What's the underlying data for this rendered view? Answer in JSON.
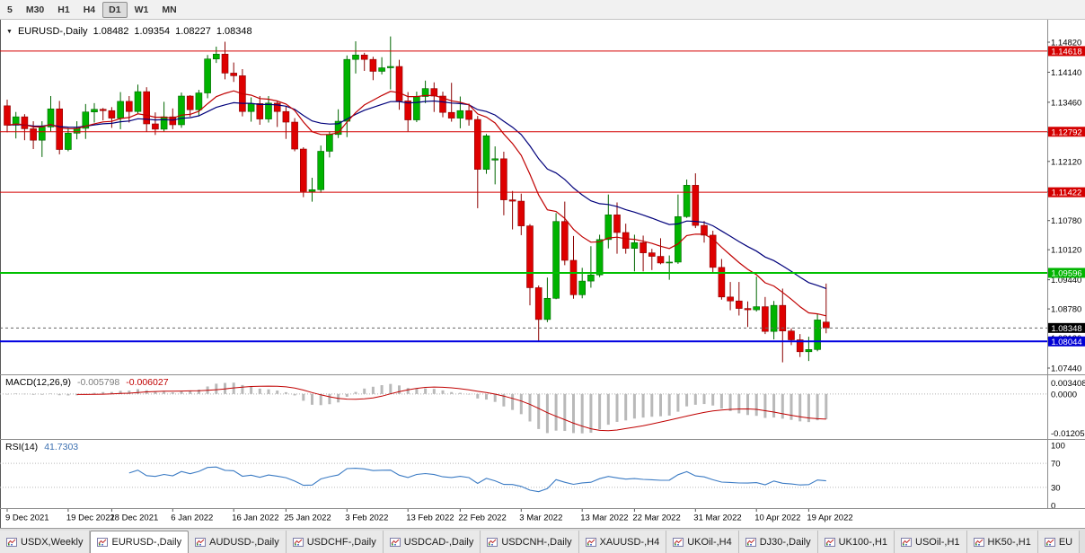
{
  "toolbar": {
    "timeframes": [
      {
        "label": "5",
        "active": false
      },
      {
        "label": "M30",
        "active": false
      },
      {
        "label": "H1",
        "active": false
      },
      {
        "label": "H4",
        "active": false
      },
      {
        "label": "D1",
        "active": true
      },
      {
        "label": "W1",
        "active": false
      },
      {
        "label": "MN",
        "active": false
      }
    ]
  },
  "chart": {
    "title": {
      "marker": "▼",
      "symbol": "EURUSD-,Daily",
      "open": "1.08482",
      "high": "1.09354",
      "low": "1.08227",
      "close": "1.08348"
    },
    "price_axis": {
      "ticks": [
        "1.14820",
        "1.14140",
        "1.13460",
        "1.12780",
        "1.12120",
        "1.11440",
        "1.10780",
        "1.10120",
        "1.09440",
        "1.08780",
        "1.08120",
        "1.07440"
      ],
      "badges": [
        {
          "label": "1.14618",
          "price": 1.14618,
          "color": "#d40000"
        },
        {
          "label": "1.12792",
          "price": 1.12792,
          "color": "#d40000"
        },
        {
          "label": "1.11422",
          "price": 1.11422,
          "color": "#d40000"
        },
        {
          "label": "1.09596",
          "price": 1.09596,
          "color": "#00b400"
        },
        {
          "label": "1.08348",
          "price": 1.08348,
          "color": "#000000"
        },
        {
          "label": "1.08044",
          "price": 1.08044,
          "color": "#0000d4"
        }
      ]
    },
    "hlines": [
      {
        "price": 1.14618,
        "color": "#d40000",
        "w": 1,
        "dash": false
      },
      {
        "price": 1.12792,
        "color": "#d40000",
        "w": 1,
        "dash": false
      },
      {
        "price": 1.11422,
        "color": "#d40000",
        "w": 1,
        "dash": false
      },
      {
        "price": 1.09596,
        "color": "#00c000",
        "w": 2,
        "dash": false
      },
      {
        "price": 1.08044,
        "color": "#0000e0",
        "w": 2,
        "dash": false
      },
      {
        "price": 1.08348,
        "color": "#666666",
        "w": 1,
        "dash": true
      }
    ],
    "ma": {
      "fast_period": 13,
      "slow_period": 26,
      "fast_color": "#c00000",
      "slow_color": "#00007b"
    },
    "candles": [
      [
        1.1338,
        1.1352,
        1.1278,
        1.1294
      ],
      [
        1.1294,
        1.1324,
        1.1264,
        1.1313
      ],
      [
        1.1313,
        1.1319,
        1.126,
        1.1286
      ],
      [
        1.1286,
        1.1303,
        1.124,
        1.126
      ],
      [
        1.126,
        1.1303,
        1.1222,
        1.129
      ],
      [
        1.129,
        1.136,
        1.128,
        1.1331
      ],
      [
        1.1331,
        1.1349,
        1.1228,
        1.1239
      ],
      [
        1.1239,
        1.1288,
        1.1235,
        1.1276
      ],
      [
        1.1276,
        1.1303,
        1.1262,
        1.1287
      ],
      [
        1.1287,
        1.1342,
        1.1263,
        1.1324
      ],
      [
        1.1324,
        1.1344,
        1.13,
        1.133
      ],
      [
        1.133,
        1.1333,
        1.1305,
        1.1327
      ],
      [
        1.1327,
        1.1335,
        1.1288,
        1.131
      ],
      [
        1.131,
        1.1369,
        1.1285,
        1.1348
      ],
      [
        1.1348,
        1.136,
        1.13,
        1.1325
      ],
      [
        1.1325,
        1.1386,
        1.1321,
        1.137
      ],
      [
        1.137,
        1.138,
        1.1279,
        1.1297
      ],
      [
        1.1297,
        1.1323,
        1.1272,
        1.1285
      ],
      [
        1.1285,
        1.1347,
        1.128,
        1.1313
      ],
      [
        1.1313,
        1.1332,
        1.1285,
        1.1295
      ],
      [
        1.1295,
        1.1368,
        1.1288,
        1.136
      ],
      [
        1.136,
        1.1362,
        1.1313,
        1.1329
      ],
      [
        1.1329,
        1.1374,
        1.1314,
        1.1367
      ],
      [
        1.1367,
        1.1453,
        1.1355,
        1.1444
      ],
      [
        1.1444,
        1.1472,
        1.1435,
        1.1455
      ],
      [
        1.1455,
        1.1483,
        1.1398,
        1.1412
      ],
      [
        1.1412,
        1.1436,
        1.1392,
        1.1406
      ],
      [
        1.1406,
        1.1421,
        1.1314,
        1.1325
      ],
      [
        1.1325,
        1.1357,
        1.1302,
        1.1343
      ],
      [
        1.1343,
        1.136,
        1.1295,
        1.1308
      ],
      [
        1.1308,
        1.136,
        1.13,
        1.1344
      ],
      [
        1.1344,
        1.1349,
        1.129,
        1.1325
      ],
      [
        1.1325,
        1.1338,
        1.1263,
        1.1301
      ],
      [
        1.1301,
        1.131,
        1.1235,
        1.124
      ],
      [
        1.124,
        1.1244,
        1.1131,
        1.1144
      ],
      [
        1.1144,
        1.1175,
        1.1121,
        1.1148
      ],
      [
        1.1148,
        1.1248,
        1.1141,
        1.1235
      ],
      [
        1.1235,
        1.128,
        1.1221,
        1.1273
      ],
      [
        1.1273,
        1.133,
        1.1265,
        1.1303
      ],
      [
        1.1303,
        1.1452,
        1.1267,
        1.1443
      ],
      [
        1.1443,
        1.1484,
        1.1411,
        1.1453
      ],
      [
        1.1453,
        1.1458,
        1.1417,
        1.1443
      ],
      [
        1.1443,
        1.1449,
        1.1396,
        1.1416
      ],
      [
        1.1416,
        1.1448,
        1.1409,
        1.1424
      ],
      [
        1.1424,
        1.1495,
        1.1375,
        1.1427
      ],
      [
        1.1427,
        1.1442,
        1.1329,
        1.1349
      ],
      [
        1.1349,
        1.1369,
        1.128,
        1.1306
      ],
      [
        1.1306,
        1.137,
        1.1301,
        1.1359
      ],
      [
        1.1359,
        1.1395,
        1.1344,
        1.1377
      ],
      [
        1.1377,
        1.1391,
        1.1324,
        1.136
      ],
      [
        1.136,
        1.137,
        1.1312,
        1.1323
      ],
      [
        1.1323,
        1.139,
        1.1302,
        1.131
      ],
      [
        1.131,
        1.1359,
        1.1287,
        1.1327
      ],
      [
        1.1327,
        1.1343,
        1.1293,
        1.1307
      ],
      [
        1.1307,
        1.1315,
        1.1106,
        1.1194
      ],
      [
        1.1194,
        1.1274,
        1.1184,
        1.127
      ],
      [
        1.1215,
        1.1246,
        1.116,
        1.1218
      ],
      [
        1.1218,
        1.1234,
        1.109,
        1.1125
      ],
      [
        1.1125,
        1.1145,
        1.1058,
        1.1122
      ],
      [
        1.1122,
        1.1139,
        1.1045,
        1.1066
      ],
      [
        1.1066,
        1.107,
        1.0886,
        1.0926
      ],
      [
        1.0926,
        1.0931,
        1.0806,
        1.0854
      ],
      [
        1.0854,
        1.0949,
        1.0848,
        1.0902
      ],
      [
        1.0902,
        1.1095,
        1.09,
        1.1076
      ],
      [
        1.1076,
        1.1121,
        1.0977,
        1.0988
      ],
      [
        1.0988,
        1.1043,
        1.0901,
        1.091
      ],
      [
        1.091,
        1.0971,
        1.0902,
        1.0941
      ],
      [
        1.0941,
        1.102,
        1.0926,
        1.0955
      ],
      [
        1.0955,
        1.1046,
        1.095,
        1.1035
      ],
      [
        1.1035,
        1.1137,
        1.1015,
        1.1091
      ],
      [
        1.1091,
        1.1119,
        1.1003,
        1.1051
      ],
      [
        1.1051,
        1.1071,
        1.1003,
        1.1015
      ],
      [
        1.1015,
        1.1046,
        1.0963,
        1.1028
      ],
      [
        1.1028,
        1.1044,
        1.0963,
        1.1005
      ],
      [
        1.1005,
        1.1014,
        1.0966,
        1.0997
      ],
      [
        1.0997,
        1.1038,
        1.0979,
        1.0982
      ],
      [
        1.0982,
        1.0999,
        1.0944,
        1.0984
      ],
      [
        1.0984,
        1.1137,
        1.098,
        1.1087
      ],
      [
        1.1087,
        1.1171,
        1.1084,
        1.1158
      ],
      [
        1.1158,
        1.1185,
        1.1061,
        1.1067
      ],
      [
        1.1067,
        1.1077,
        1.1028,
        1.1045
      ],
      [
        1.1045,
        1.1055,
        1.0961,
        1.0972
      ],
      [
        1.0972,
        1.0991,
        1.0899,
        1.0905
      ],
      [
        1.0905,
        1.0939,
        1.0875,
        1.0896
      ],
      [
        1.0896,
        1.0939,
        1.0863,
        1.0879
      ],
      [
        1.0879,
        1.0895,
        1.0837,
        1.0876
      ],
      [
        1.0876,
        1.0951,
        1.0872,
        1.0883
      ],
      [
        1.0883,
        1.0905,
        1.0821,
        1.0827
      ],
      [
        1.0827,
        1.0896,
        1.0809,
        1.0886
      ],
      [
        1.0886,
        1.0924,
        1.0757,
        1.0828
      ],
      [
        1.0828,
        1.0834,
        1.0796,
        1.0808
      ],
      [
        1.0808,
        1.0821,
        1.0769,
        1.0781
      ],
      [
        1.0781,
        1.0815,
        1.076,
        1.0786
      ],
      [
        1.0786,
        1.0867,
        1.0782,
        1.0853
      ],
      [
        1.08482,
        1.09354,
        1.08227,
        1.08348
      ]
    ],
    "x_labels": [
      {
        "i": 0,
        "t": "9 Dec 2021"
      },
      {
        "i": 7,
        "t": "19 Dec 2021"
      },
      {
        "i": 12,
        "t": "28 Dec 2021"
      },
      {
        "i": 19,
        "t": "6 Jan 2022"
      },
      {
        "i": 26,
        "t": "16 Jan 2022"
      },
      {
        "i": 32,
        "t": "25 Jan 2022"
      },
      {
        "i": 39,
        "t": "3 Feb 2022"
      },
      {
        "i": 46,
        "t": "13 Feb 2022"
      },
      {
        "i": 52,
        "t": "22 Feb 2022"
      },
      {
        "i": 59,
        "t": "3 Mar 2022"
      },
      {
        "i": 66,
        "t": "13 Mar 2022"
      },
      {
        "i": 72,
        "t": "22 Mar 2022"
      },
      {
        "i": 79,
        "t": "31 Mar 2022"
      },
      {
        "i": 86,
        "t": "10 Apr 2022"
      },
      {
        "i": 92,
        "t": "19 Apr 2022"
      }
    ]
  },
  "macd": {
    "label": "MACD(12,26,9)",
    "value_main": "-0.005798",
    "value_signal": "-0.006027",
    "axis_labels": [
      "0.003408",
      "0.0000",
      "-0.012058"
    ],
    "fast": 12,
    "slow": 26,
    "signal_period": 9,
    "histogram_color": "#b9b9b9",
    "signal_color": "#c00000"
  },
  "rsi": {
    "label": "RSI(14)",
    "value": "41.7303",
    "period": 14,
    "axis_labels": [
      "100",
      "70",
      "30",
      "0"
    ],
    "levels": [
      70,
      30
    ],
    "line_color": "#3b7bc4"
  },
  "colors": {
    "up": "#00b300",
    "up_stroke": "#006600",
    "down": "#de0000",
    "down_stroke": "#8b0000",
    "separator": "#8c8c8c",
    "axis_text": "#000000"
  },
  "tabs": [
    {
      "label": "USDX,Weekly",
      "active": false
    },
    {
      "label": "EURUSD-,Daily",
      "active": true
    },
    {
      "label": "AUDUSD-,Daily",
      "active": false
    },
    {
      "label": "USDCHF-,Daily",
      "active": false
    },
    {
      "label": "USDCAD-,Daily",
      "active": false
    },
    {
      "label": "USDCNH-,Daily",
      "active": false
    },
    {
      "label": "XAUUSD-,H4",
      "active": false
    },
    {
      "label": "UKOil-,H4",
      "active": false
    },
    {
      "label": "DJ30-,Daily",
      "active": false
    },
    {
      "label": "UK100-,H1",
      "active": false
    },
    {
      "label": "USOil-,H1",
      "active": false
    },
    {
      "label": "HK50-,H1",
      "active": false
    },
    {
      "label": "EU",
      "active": false
    }
  ]
}
